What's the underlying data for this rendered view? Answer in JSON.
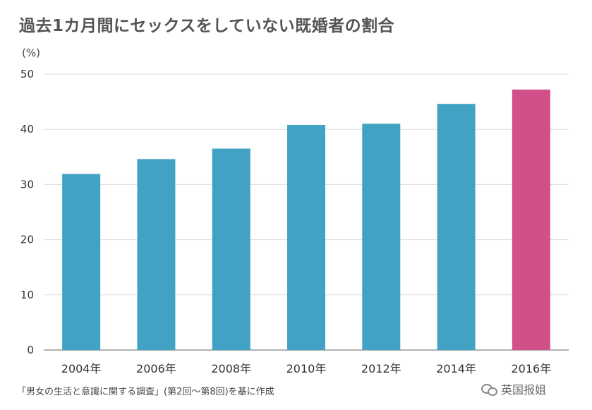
{
  "chart_data": {
    "type": "bar",
    "title": "過去1カ月間にセックスをしていない既婚者の割合",
    "ylabel": "(%)",
    "xlabel": "",
    "categories": [
      "2004年",
      "2006年",
      "2008年",
      "2010年",
      "2012年",
      "2014年",
      "2016年"
    ],
    "values": [
      31.9,
      34.6,
      36.5,
      40.8,
      41.0,
      44.6,
      47.2
    ],
    "ylim": [
      0,
      50
    ],
    "yticks": [
      0,
      10,
      20,
      30,
      40,
      50
    ],
    "grid": true,
    "colors": {
      "default_bar": "#42a2c4",
      "highlight_bar": "#d2508a",
      "highlight_index": 6
    }
  },
  "source": "「男女の生活と意識に関する調査」(第2回〜第8回)を基に作成",
  "watermark": {
    "icon": "chat-bubbles-icon",
    "text": "英国报姐"
  }
}
